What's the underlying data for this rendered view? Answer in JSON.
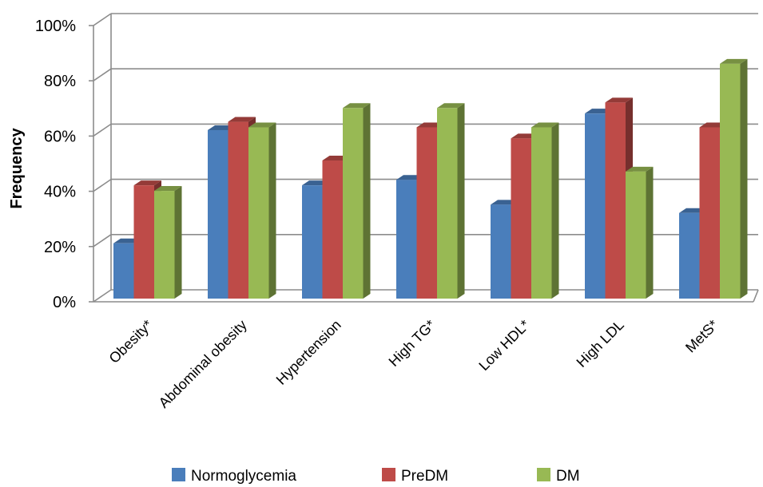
{
  "chart_data": {
    "type": "bar",
    "style": "3d-clustered-column",
    "title": "",
    "xlabel": "",
    "ylabel": "Frequency",
    "ylim": [
      0,
      100
    ],
    "yticks": [
      "0%",
      "20%",
      "40%",
      "60%",
      "80%",
      "100%"
    ],
    "ytick_values": [
      0,
      20,
      40,
      60,
      80,
      100
    ],
    "grid": true,
    "legend_position": "bottom",
    "categories": [
      "Obesity*",
      "Abdominal obesity",
      "Hypertension",
      "High TG*",
      "Low HDL*",
      "High LDL",
      "MetS*"
    ],
    "series": [
      {
        "name": "Normoglycemia",
        "color": "#4a7ebb",
        "values": [
          20,
          61,
          41,
          43,
          34,
          67,
          31
        ]
      },
      {
        "name": "PreDM",
        "color": "#be4b48",
        "values": [
          41,
          64,
          50,
          62,
          58,
          71,
          62
        ]
      },
      {
        "name": "DM",
        "color": "#98b954",
        "values": [
          39,
          62,
          69,
          69,
          62,
          46,
          85
        ]
      }
    ]
  }
}
